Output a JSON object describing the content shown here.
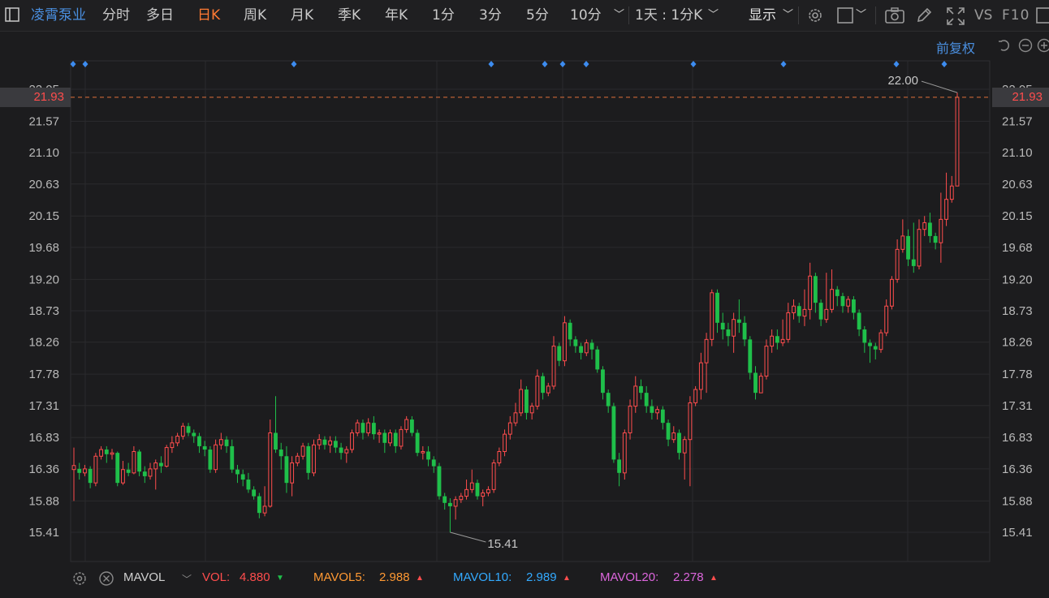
{
  "toolbar": {
    "stock_name": "凌霄泵业",
    "tabs": [
      "分时",
      "多日",
      "日K",
      "周K",
      "月K",
      "季K",
      "年K",
      "1分",
      "3分",
      "5分",
      "10分"
    ],
    "active_tab": "日K",
    "interval_select": "1天 : 1分K",
    "display_label": "显示",
    "vs_label": "VS",
    "f10_label": "F10"
  },
  "subbar": {
    "adjust_label": "前复权"
  },
  "chart_data": {
    "type": "candlestick",
    "y_axis_ticks": [
      "22.05",
      "21.57",
      "21.10",
      "20.63",
      "20.15",
      "19.68",
      "19.20",
      "18.73",
      "18.26",
      "17.78",
      "17.31",
      "16.83",
      "16.36",
      "15.88",
      "15.41"
    ],
    "ylim": [
      15.0,
      22.15
    ],
    "current_price": "21.93",
    "high_label": "22.00",
    "low_label": "15.41",
    "up_color": "#ff4d4d",
    "down_color": "#1fbf4a",
    "event_marker_count": 11,
    "candles": [
      [
        16.35,
        16.41,
        16.68,
        15.88
      ],
      [
        16.36,
        16.3,
        16.45,
        16.2
      ],
      [
        16.3,
        16.36,
        16.42,
        16.25
      ],
      [
        16.36,
        16.15,
        16.4,
        16.07
      ],
      [
        16.15,
        16.55,
        16.6,
        16.1
      ],
      [
        16.55,
        16.65,
        16.7,
        16.5
      ],
      [
        16.65,
        16.58,
        16.7,
        16.45
      ],
      [
        16.58,
        16.6,
        16.66,
        16.5
      ],
      [
        16.6,
        16.15,
        16.62,
        16.1
      ],
      [
        16.15,
        16.35,
        16.48,
        16.12
      ],
      [
        16.35,
        16.3,
        16.45,
        16.25
      ],
      [
        16.3,
        16.62,
        16.7,
        16.28
      ],
      [
        16.62,
        16.32,
        16.65,
        16.25
      ],
      [
        16.32,
        16.25,
        16.4,
        16.15
      ],
      [
        16.25,
        16.36,
        16.45,
        16.2
      ],
      [
        16.36,
        16.45,
        16.5,
        16.05
      ],
      [
        16.45,
        16.4,
        16.55,
        16.3
      ],
      [
        16.4,
        16.68,
        16.72,
        16.38
      ],
      [
        16.68,
        16.75,
        16.85,
        16.6
      ],
      [
        16.75,
        16.85,
        16.9,
        16.7
      ],
      [
        16.85,
        17.0,
        17.05,
        16.8
      ],
      [
        17.0,
        16.9,
        17.05,
        16.85
      ],
      [
        16.9,
        16.85,
        16.95,
        16.75
      ],
      [
        16.85,
        16.7,
        16.9,
        16.6
      ],
      [
        16.7,
        16.65,
        16.78,
        16.55
      ],
      [
        16.65,
        16.35,
        16.7,
        16.3
      ],
      [
        16.35,
        16.72,
        16.8,
        16.3
      ],
      [
        16.72,
        16.8,
        16.9,
        16.65
      ],
      [
        16.8,
        16.7,
        16.85,
        16.6
      ],
      [
        16.7,
        16.35,
        16.8,
        16.3
      ],
      [
        16.35,
        16.28,
        16.42,
        16.15
      ],
      [
        16.28,
        16.2,
        16.35,
        16.1
      ],
      [
        16.2,
        16.05,
        16.3,
        16.0
      ],
      [
        16.05,
        15.95,
        16.1,
        15.9
      ],
      [
        15.95,
        15.7,
        16.0,
        15.62
      ],
      [
        15.7,
        15.8,
        16.1,
        15.65
      ],
      [
        15.8,
        16.9,
        17.1,
        15.78
      ],
      [
        16.9,
        16.65,
        17.45,
        16.6
      ],
      [
        16.65,
        16.55,
        16.75,
        16.35
      ],
      [
        16.55,
        16.15,
        16.7,
        16.0
      ],
      [
        16.15,
        16.45,
        16.55,
        15.95
      ],
      [
        16.45,
        16.55,
        16.6,
        16.4
      ],
      [
        16.55,
        16.7,
        16.75,
        16.5
      ],
      [
        16.7,
        16.3,
        16.75,
        16.2
      ],
      [
        16.3,
        16.72,
        16.8,
        16.25
      ],
      [
        16.72,
        16.8,
        16.88,
        16.65
      ],
      [
        16.8,
        16.72,
        16.85,
        16.65
      ],
      [
        16.72,
        16.78,
        16.85,
        16.6
      ],
      [
        16.78,
        16.68,
        16.85,
        16.6
      ],
      [
        16.68,
        16.6,
        16.75,
        16.5
      ],
      [
        16.6,
        16.65,
        16.7,
        16.45
      ],
      [
        16.65,
        16.9,
        16.95,
        16.6
      ],
      [
        16.9,
        17.05,
        17.1,
        16.85
      ],
      [
        17.05,
        16.9,
        17.1,
        16.8
      ],
      [
        16.9,
        17.05,
        17.12,
        16.85
      ],
      [
        17.05,
        16.88,
        17.15,
        16.8
      ],
      [
        16.88,
        16.9,
        16.95,
        16.75
      ],
      [
        16.9,
        16.75,
        16.95,
        16.6
      ],
      [
        16.75,
        16.9,
        16.95,
        16.7
      ],
      [
        16.9,
        16.7,
        16.95,
        16.6
      ],
      [
        16.7,
        16.95,
        17.0,
        16.65
      ],
      [
        16.95,
        17.1,
        17.15,
        16.9
      ],
      [
        17.1,
        16.9,
        17.15,
        16.85
      ],
      [
        16.9,
        16.6,
        16.95,
        16.55
      ],
      [
        16.6,
        16.62,
        16.7,
        16.5
      ],
      [
        16.62,
        16.5,
        16.7,
        16.4
      ],
      [
        16.5,
        16.4,
        16.55,
        16.3
      ],
      [
        16.4,
        15.95,
        16.45,
        15.9
      ],
      [
        15.95,
        15.85,
        16.0,
        15.75
      ],
      [
        15.85,
        15.8,
        15.92,
        15.41
      ],
      [
        15.8,
        15.9,
        15.95,
        15.6
      ],
      [
        15.9,
        15.95,
        16.0,
        15.85
      ],
      [
        15.95,
        16.05,
        16.2,
        15.9
      ],
      [
        16.05,
        16.15,
        16.35,
        16.0
      ],
      [
        16.15,
        15.95,
        16.2,
        15.9
      ],
      [
        15.95,
        16.0,
        16.05,
        15.8
      ],
      [
        16.0,
        16.05,
        16.1,
        15.95
      ],
      [
        16.05,
        16.45,
        16.5,
        16.0
      ],
      [
        16.45,
        16.62,
        16.68,
        16.4
      ],
      [
        16.62,
        16.88,
        16.95,
        16.55
      ],
      [
        16.88,
        17.05,
        17.15,
        16.8
      ],
      [
        17.05,
        17.2,
        17.35,
        17.0
      ],
      [
        17.2,
        17.55,
        17.7,
        17.15
      ],
      [
        17.55,
        17.2,
        17.6,
        17.1
      ],
      [
        17.2,
        17.3,
        17.35,
        17.1
      ],
      [
        17.3,
        17.75,
        17.85,
        17.25
      ],
      [
        17.75,
        17.5,
        17.8,
        17.4
      ],
      [
        17.5,
        17.6,
        17.65,
        17.45
      ],
      [
        17.6,
        18.2,
        18.35,
        17.55
      ],
      [
        18.2,
        17.98,
        18.25,
        17.9
      ],
      [
        17.98,
        18.55,
        18.65,
        17.9
      ],
      [
        18.55,
        18.3,
        18.6,
        18.2
      ],
      [
        18.3,
        18.2,
        18.35,
        18.1
      ],
      [
        18.2,
        18.1,
        18.25,
        18.0
      ],
      [
        18.1,
        18.25,
        18.3,
        18.05
      ],
      [
        18.25,
        18.15,
        18.3,
        18.0
      ],
      [
        18.15,
        17.85,
        18.2,
        17.8
      ],
      [
        17.85,
        17.5,
        17.9,
        17.4
      ],
      [
        17.5,
        17.3,
        17.55,
        17.2
      ],
      [
        17.3,
        16.5,
        17.35,
        16.45
      ],
      [
        16.5,
        16.3,
        16.6,
        16.1
      ],
      [
        16.3,
        16.9,
        16.95,
        16.2
      ],
      [
        16.9,
        17.3,
        17.4,
        16.8
      ],
      [
        17.3,
        17.6,
        17.75,
        17.2
      ],
      [
        17.6,
        17.5,
        17.7,
        17.4
      ],
      [
        17.5,
        17.3,
        17.6,
        17.2
      ],
      [
        17.3,
        17.2,
        17.4,
        17.1
      ],
      [
        17.2,
        17.25,
        17.3,
        17.1
      ],
      [
        17.25,
        17.05,
        17.3,
        16.95
      ],
      [
        17.05,
        16.8,
        17.1,
        16.7
      ],
      [
        16.8,
        16.9,
        17.0,
        16.75
      ],
      [
        16.9,
        16.6,
        16.95,
        16.5
      ],
      [
        16.6,
        16.8,
        16.85,
        16.2
      ],
      [
        16.8,
        17.35,
        17.45,
        16.1
      ],
      [
        17.35,
        17.55,
        17.6,
        17.3
      ],
      [
        17.55,
        17.95,
        18.1,
        17.4
      ],
      [
        17.95,
        18.3,
        18.4,
        17.5
      ],
      [
        18.3,
        19.0,
        19.05,
        18.2
      ],
      [
        19.0,
        18.55,
        19.05,
        18.4
      ],
      [
        18.55,
        18.45,
        18.7,
        18.3
      ],
      [
        18.45,
        18.35,
        18.55,
        18.2
      ],
      [
        18.35,
        18.6,
        18.7,
        18.1
      ],
      [
        18.6,
        18.55,
        18.9,
        18.4
      ],
      [
        18.55,
        18.3,
        18.65,
        18.2
      ],
      [
        18.3,
        17.8,
        18.35,
        17.7
      ],
      [
        17.8,
        17.5,
        17.9,
        17.4
      ],
      [
        17.5,
        17.75,
        17.8,
        17.6
      ],
      [
        17.75,
        18.2,
        18.3,
        17.7
      ],
      [
        18.2,
        18.35,
        18.45,
        18.1
      ],
      [
        18.35,
        18.25,
        18.45,
        18.15
      ],
      [
        18.25,
        18.3,
        18.6,
        18.2
      ],
      [
        18.3,
        18.7,
        18.85,
        18.25
      ],
      [
        18.7,
        18.8,
        18.9,
        18.6
      ],
      [
        18.8,
        18.65,
        18.85,
        18.55
      ],
      [
        18.65,
        18.75,
        19.05,
        18.5
      ],
      [
        18.75,
        19.25,
        19.45,
        18.6
      ],
      [
        19.25,
        18.85,
        19.3,
        18.7
      ],
      [
        18.85,
        18.6,
        18.9,
        18.5
      ],
      [
        18.6,
        18.75,
        19.3,
        18.55
      ],
      [
        18.75,
        19.05,
        19.35,
        18.7
      ],
      [
        19.05,
        18.95,
        19.1,
        18.8
      ],
      [
        18.95,
        18.8,
        19.0,
        18.7
      ],
      [
        18.8,
        18.9,
        18.95,
        18.7
      ],
      [
        18.9,
        18.7,
        18.95,
        18.6
      ],
      [
        18.7,
        18.45,
        18.75,
        18.35
      ],
      [
        18.45,
        18.25,
        18.5,
        18.1
      ],
      [
        18.25,
        18.2,
        18.3,
        17.95
      ],
      [
        18.2,
        18.15,
        18.25,
        18.0
      ],
      [
        18.15,
        18.4,
        18.45,
        18.1
      ],
      [
        18.4,
        18.8,
        18.9,
        18.35
      ],
      [
        18.8,
        19.2,
        19.25,
        18.75
      ],
      [
        19.2,
        19.65,
        19.8,
        19.15
      ],
      [
        19.65,
        19.85,
        20.1,
        19.6
      ],
      [
        19.85,
        19.5,
        19.95,
        19.4
      ],
      [
        19.5,
        19.4,
        20.05,
        19.3
      ],
      [
        19.4,
        19.95,
        20.1,
        19.35
      ],
      [
        19.95,
        20.05,
        20.15,
        19.85
      ],
      [
        20.05,
        19.85,
        20.2,
        19.75
      ],
      [
        19.85,
        19.75,
        19.9,
        19.65
      ],
      [
        19.75,
        20.1,
        20.5,
        19.45
      ],
      [
        20.1,
        20.4,
        20.8,
        20.0
      ],
      [
        20.4,
        20.6,
        20.75,
        20.35
      ],
      [
        20.6,
        21.93,
        22.0,
        20.6
      ]
    ]
  },
  "volume_panel": {
    "indicator_name": "MAVOL",
    "vol_label": "VOL:",
    "vol_value": "4.880",
    "mavol5_label": "MAVOL5:",
    "mavol5_value": "2.988",
    "mavol10_label": "MAVOL10:",
    "mavol10_value": "2.989",
    "mavol20_label": "MAVOL20:",
    "mavol20_value": "2.278",
    "colors": {
      "vol": "#ff4d4d",
      "mavol5": "#ff9933",
      "mavol10": "#33aaff",
      "mavol20": "#dd66dd"
    }
  }
}
